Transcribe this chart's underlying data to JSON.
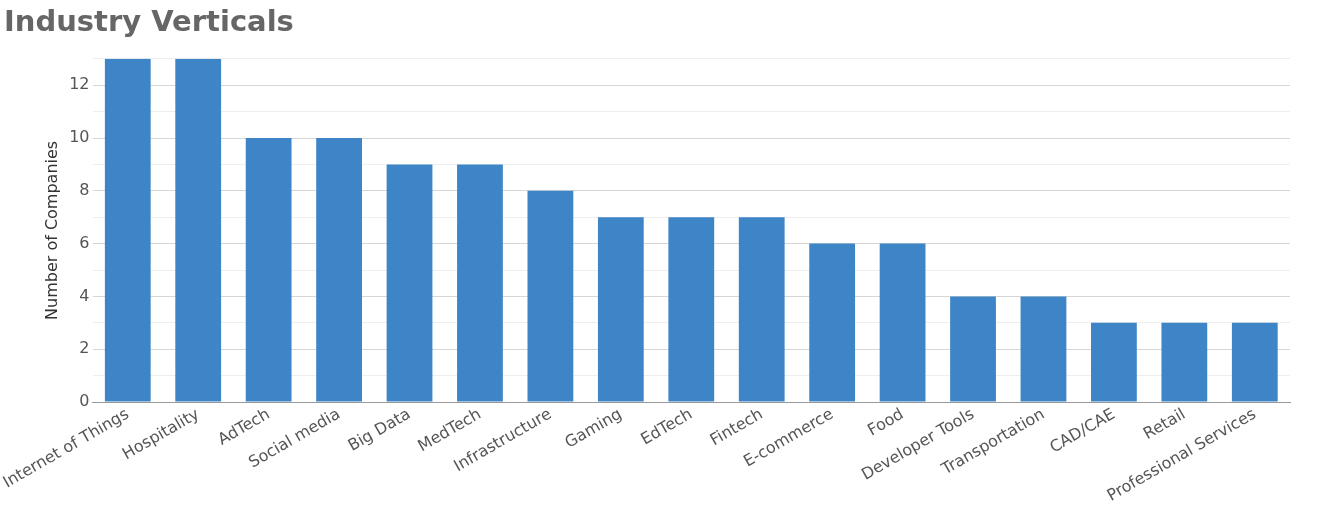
{
  "chart_data": {
    "type": "bar",
    "title": "Industry Verticals",
    "ylabel": "Number of Companies",
    "categories": [
      "Internet of Things",
      "Hospitality",
      "AdTech",
      "Social media",
      "Big Data",
      "MedTech",
      "Infrastructure",
      "Gaming",
      "EdTech",
      "Fintech",
      "E-commerce",
      "Food",
      "Developer Tools",
      "Transportation",
      "CAD/CAE",
      "Retail",
      "Professional Services"
    ],
    "values": [
      13,
      13,
      10,
      10,
      9,
      9,
      8,
      7,
      7,
      7,
      6,
      6,
      4,
      4,
      3,
      3,
      3
    ],
    "color": "#3d85c6",
    "ylim": [
      0,
      13
    ],
    "yticks": [
      0,
      {
        "value": 1,
        "label": null
      },
      2,
      {
        "value": 3,
        "label": null
      },
      4,
      {
        "value": 5,
        "label": null
      },
      6,
      {
        "value": 7,
        "label": null
      },
      8,
      {
        "value": 9,
        "label": null
      },
      10,
      {
        "value": 11,
        "label": null
      },
      12,
      {
        "value": 13,
        "label": null
      }
    ],
    "grid": "y",
    "legend": false
  }
}
